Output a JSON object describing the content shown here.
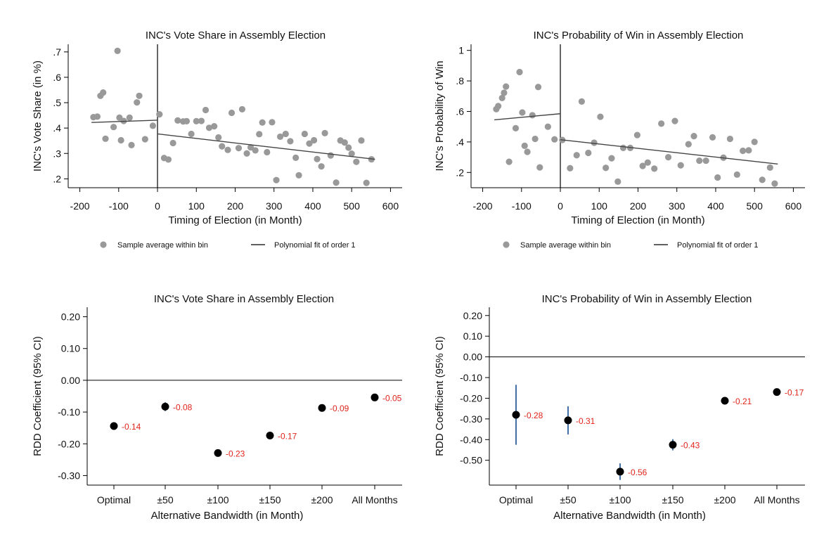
{
  "chart_data": [
    {
      "type": "scatter",
      "title": "INC's Vote Share in Assembly Election",
      "xlabel": "Timing of Election (in Month)",
      "ylabel": "INC's Vote Share (in %)",
      "xlim": [
        -230,
        630
      ],
      "ylim": [
        0.165,
        0.73
      ],
      "xticks": [
        -200,
        -100,
        0,
        100,
        200,
        300,
        400,
        500,
        600
      ],
      "xtick_labels": [
        "-200",
        "-100",
        "0",
        "100",
        "200",
        "300",
        "400",
        "500",
        "600"
      ],
      "yticks": [
        0.2,
        0.3,
        0.4,
        0.5,
        0.6,
        0.7
      ],
      "ytick_labels": [
        ".2",
        ".3",
        ".4",
        ".5",
        ".6",
        ".7"
      ],
      "cutoff": 0,
      "legend": [
        "Sample average within bin",
        "Polynomial fit of order 1"
      ],
      "points": [
        [
          -165,
          0.443
        ],
        [
          -155,
          0.445
        ],
        [
          -147,
          0.527
        ],
        [
          -140,
          0.54
        ],
        [
          -134,
          0.358
        ],
        [
          -113,
          0.404
        ],
        [
          -103,
          0.704
        ],
        [
          -98,
          0.441
        ],
        [
          -94,
          0.352
        ],
        [
          -87,
          0.428
        ],
        [
          -72,
          0.441
        ],
        [
          -67,
          0.333
        ],
        [
          -53,
          0.501
        ],
        [
          -47,
          0.527
        ],
        [
          -32,
          0.356
        ],
        [
          -12,
          0.409
        ],
        [
          5,
          0.454
        ],
        [
          17,
          0.282
        ],
        [
          28,
          0.276
        ],
        [
          40,
          0.341
        ],
        [
          52,
          0.43
        ],
        [
          66,
          0.426
        ],
        [
          75,
          0.427
        ],
        [
          87,
          0.377
        ],
        [
          100,
          0.427
        ],
        [
          113,
          0.428
        ],
        [
          124,
          0.471
        ],
        [
          133,
          0.401
        ],
        [
          146,
          0.407
        ],
        [
          157,
          0.363
        ],
        [
          166,
          0.328
        ],
        [
          181,
          0.314
        ],
        [
          191,
          0.46
        ],
        [
          209,
          0.321
        ],
        [
          218,
          0.474
        ],
        [
          230,
          0.3
        ],
        [
          240,
          0.324
        ],
        [
          252,
          0.312
        ],
        [
          262,
          0.376
        ],
        [
          270,
          0.422
        ],
        [
          282,
          0.305
        ],
        [
          295,
          0.423
        ],
        [
          306,
          0.195
        ],
        [
          316,
          0.366
        ],
        [
          330,
          0.377
        ],
        [
          342,
          0.348
        ],
        [
          356,
          0.283
        ],
        [
          364,
          0.214
        ],
        [
          379,
          0.377
        ],
        [
          391,
          0.339
        ],
        [
          403,
          0.352
        ],
        [
          411,
          0.278
        ],
        [
          422,
          0.249
        ],
        [
          431,
          0.38
        ],
        [
          446,
          0.292
        ],
        [
          460,
          0.185
        ],
        [
          471,
          0.351
        ],
        [
          482,
          0.343
        ],
        [
          492,
          0.323
        ],
        [
          500,
          0.299
        ],
        [
          512,
          0.267
        ],
        [
          525,
          0.351
        ],
        [
          538,
          0.184
        ],
        [
          551,
          0.277
        ]
      ],
      "fit": [
        {
          "x": [
            -170,
            0
          ],
          "y": [
            0.422,
            0.431
          ]
        },
        {
          "x": [
            0,
            560
          ],
          "y": [
            0.377,
            0.277
          ]
        }
      ]
    },
    {
      "type": "scatter",
      "title": "INC's Probability of Win in Assembly Election",
      "xlabel": "Timing of Election (in Month)",
      "ylabel": "INC's Probability of Win",
      "xlim": [
        -230,
        630
      ],
      "ylim": [
        0.1,
        1.04
      ],
      "xticks": [
        -200,
        -100,
        0,
        100,
        200,
        300,
        400,
        500,
        600
      ],
      "xtick_labels": [
        "-200",
        "-100",
        "0",
        "100",
        "200",
        "300",
        "400",
        "500",
        "600"
      ],
      "yticks": [
        0.2,
        0.4,
        0.6,
        0.8,
        1.0
      ],
      "ytick_labels": [
        ".2",
        ".4",
        ".6",
        ".8",
        "1"
      ],
      "cutoff": 0,
      "legend": [
        "Sample average within bin",
        "Polynomial fit of order 1"
      ],
      "points": [
        [
          -165,
          0.615
        ],
        [
          -160,
          0.635
        ],
        [
          -150,
          0.688
        ],
        [
          -145,
          0.722
        ],
        [
          -140,
          0.763
        ],
        [
          -132,
          0.27
        ],
        [
          -115,
          0.49
        ],
        [
          -105,
          0.858
        ],
        [
          -98,
          0.593
        ],
        [
          -92,
          0.375
        ],
        [
          -85,
          0.335
        ],
        [
          -72,
          0.575
        ],
        [
          -65,
          0.42
        ],
        [
          -57,
          0.76
        ],
        [
          -53,
          0.233
        ],
        [
          -32,
          0.5
        ],
        [
          -15,
          0.417
        ],
        [
          5,
          0.413
        ],
        [
          25,
          0.228
        ],
        [
          42,
          0.313
        ],
        [
          55,
          0.665
        ],
        [
          72,
          0.328
        ],
        [
          87,
          0.395
        ],
        [
          103,
          0.565
        ],
        [
          117,
          0.23
        ],
        [
          132,
          0.293
        ],
        [
          148,
          0.14
        ],
        [
          162,
          0.361
        ],
        [
          180,
          0.361
        ],
        [
          198,
          0.445
        ],
        [
          212,
          0.243
        ],
        [
          225,
          0.265
        ],
        [
          242,
          0.225
        ],
        [
          260,
          0.52
        ],
        [
          278,
          0.3
        ],
        [
          295,
          0.537
        ],
        [
          310,
          0.247
        ],
        [
          330,
          0.385
        ],
        [
          344,
          0.438
        ],
        [
          358,
          0.277
        ],
        [
          375,
          0.277
        ],
        [
          392,
          0.43
        ],
        [
          405,
          0.167
        ],
        [
          420,
          0.297
        ],
        [
          437,
          0.42
        ],
        [
          455,
          0.186
        ],
        [
          470,
          0.342
        ],
        [
          485,
          0.345
        ],
        [
          500,
          0.4
        ],
        [
          520,
          0.152
        ],
        [
          540,
          0.232
        ],
        [
          552,
          0.127
        ]
      ],
      "fit": [
        {
          "x": [
            -170,
            0
          ],
          "y": [
            0.545,
            0.585
          ]
        },
        {
          "x": [
            0,
            560
          ],
          "y": [
            0.415,
            0.255
          ]
        }
      ]
    },
    {
      "type": "errorbar",
      "title": "INC's Vote Share in Assembly Election",
      "xlabel": "Alternative Bandwidth (in Month)",
      "ylabel": "RDD Coefficient (95% CI)",
      "ylim": [
        -0.33,
        0.23
      ],
      "yticks": [
        0.2,
        0.1,
        0.0,
        -0.1,
        -0.2,
        -0.3
      ],
      "ytick_labels": [
        "0.20",
        "0.10",
        "0.00",
        "-0.10",
        "-0.20",
        "-0.30"
      ],
      "categories": [
        "Optimal",
        "±50",
        "±100",
        "±150",
        "±200",
        "All Months"
      ],
      "values": [
        -0.144,
        -0.083,
        -0.229,
        -0.174,
        -0.087,
        -0.054
      ],
      "ci_low": [
        -0.156,
        -0.097,
        -0.234,
        -0.18,
        -0.091,
        -0.058
      ],
      "ci_high": [
        -0.132,
        -0.069,
        -0.224,
        -0.168,
        -0.083,
        -0.05
      ],
      "labels": [
        "-0.14",
        "-0.08",
        "-0.23",
        "-0.17",
        "-0.09",
        "-0.05"
      ],
      "refline": 0
    },
    {
      "type": "errorbar",
      "title": "INC's Probability of Win in Assembly Election",
      "xlabel": "Alternative Bandwidth (in Month)",
      "ylabel": "RDD Coefficient (95% CI)",
      "ylim": [
        -0.62,
        0.24
      ],
      "yticks": [
        0.2,
        0.1,
        0.0,
        -0.1,
        -0.2,
        -0.3,
        -0.4,
        -0.5
      ],
      "ytick_labels": [
        "0.20",
        "0.10",
        "0.00",
        "-0.10",
        "-0.20",
        "-0.30",
        "-0.40",
        "-0.50"
      ],
      "categories": [
        "Optimal",
        "±50",
        "±100",
        "±150",
        "±200",
        "All Months"
      ],
      "values": [
        -0.28,
        -0.307,
        -0.555,
        -0.425,
        -0.212,
        -0.17
      ],
      "ci_low": [
        -0.425,
        -0.375,
        -0.595,
        -0.452,
        -0.228,
        -0.18
      ],
      "ci_high": [
        -0.135,
        -0.239,
        -0.515,
        -0.398,
        -0.196,
        -0.16
      ],
      "labels": [
        "-0.28",
        "-0.31",
        "-0.56",
        "-0.43",
        "-0.21",
        "-0.17"
      ],
      "refline": 0
    }
  ]
}
